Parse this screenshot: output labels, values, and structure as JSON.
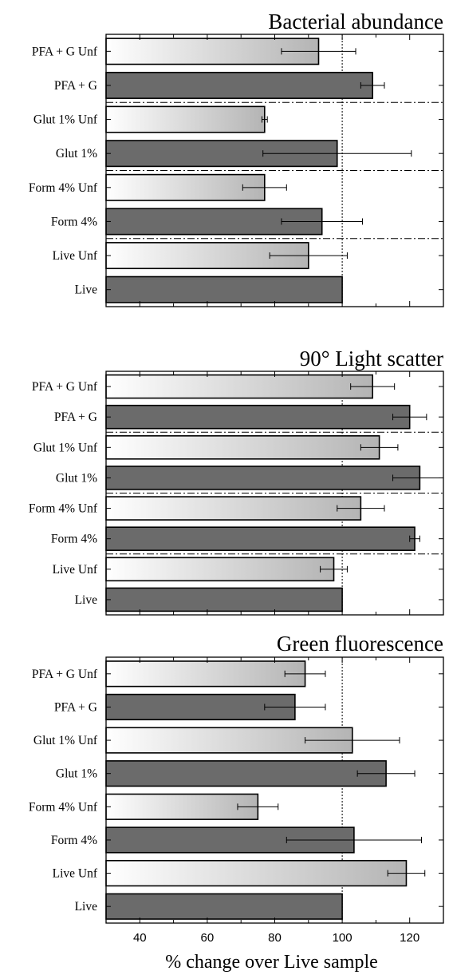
{
  "chart_data": [
    {
      "type": "bar",
      "orientation": "horizontal",
      "title": "Bacterial abundance",
      "categories": [
        "PFA + G Unf",
        "PFA + G",
        "Glut 1% Unf",
        "Glut 1%",
        "Form 4% Unf",
        "Form 4%",
        "Live Unf",
        "Live"
      ],
      "values": [
        93,
        109,
        77,
        98.5,
        77,
        94,
        90,
        100
      ],
      "error": [
        11,
        3.5,
        0.8,
        22,
        6.5,
        12,
        11.5,
        0
      ],
      "fill": [
        "light",
        "dark",
        "light",
        "dark",
        "light",
        "dark",
        "light",
        "dark"
      ],
      "reference_line": 100,
      "group_separators": true,
      "xlim": [
        30,
        130
      ]
    },
    {
      "type": "bar",
      "orientation": "horizontal",
      "title": "90° Light scatter",
      "categories": [
        "PFA + G Unf",
        "PFA + G",
        "Glut 1% Unf",
        "Glut 1%",
        "Form 4% Unf",
        "Form 4%",
        "Live Unf",
        "Live"
      ],
      "values": [
        109,
        120,
        111,
        123,
        105.5,
        121.5,
        97.5,
        100
      ],
      "error": [
        6.5,
        5,
        5.5,
        8,
        7,
        1.5,
        4,
        0
      ],
      "fill": [
        "light",
        "dark",
        "light",
        "dark",
        "light",
        "dark",
        "light",
        "dark"
      ],
      "reference_line": 100,
      "group_separators": true,
      "xlim": [
        30,
        130
      ]
    },
    {
      "type": "bar",
      "orientation": "horizontal",
      "title": "Green fluorescence",
      "categories": [
        "PFA + G Unf",
        "PFA + G",
        "Glut 1% Unf",
        "Glut 1%",
        "Form 4% Unf",
        "Form 4%",
        "Live Unf",
        "Live"
      ],
      "values": [
        89,
        86,
        103,
        113,
        75,
        103.5,
        119,
        100
      ],
      "error": [
        6,
        9,
        14,
        8.5,
        6,
        20,
        5.5,
        0
      ],
      "fill": [
        "light",
        "dark",
        "light",
        "dark",
        "light",
        "dark",
        "light",
        "dark"
      ],
      "reference_line": 100,
      "group_separators": false,
      "xlim": [
        30,
        130
      ],
      "xticks": [
        40,
        60,
        80,
        100,
        120
      ],
      "xlabel": "% change over Live sample"
    }
  ],
  "colors": {
    "dark_bar": "#6b6b6b",
    "light_bar_left": "#ffffff",
    "light_bar_right": "#b4b4b4",
    "axis": "#000000"
  }
}
